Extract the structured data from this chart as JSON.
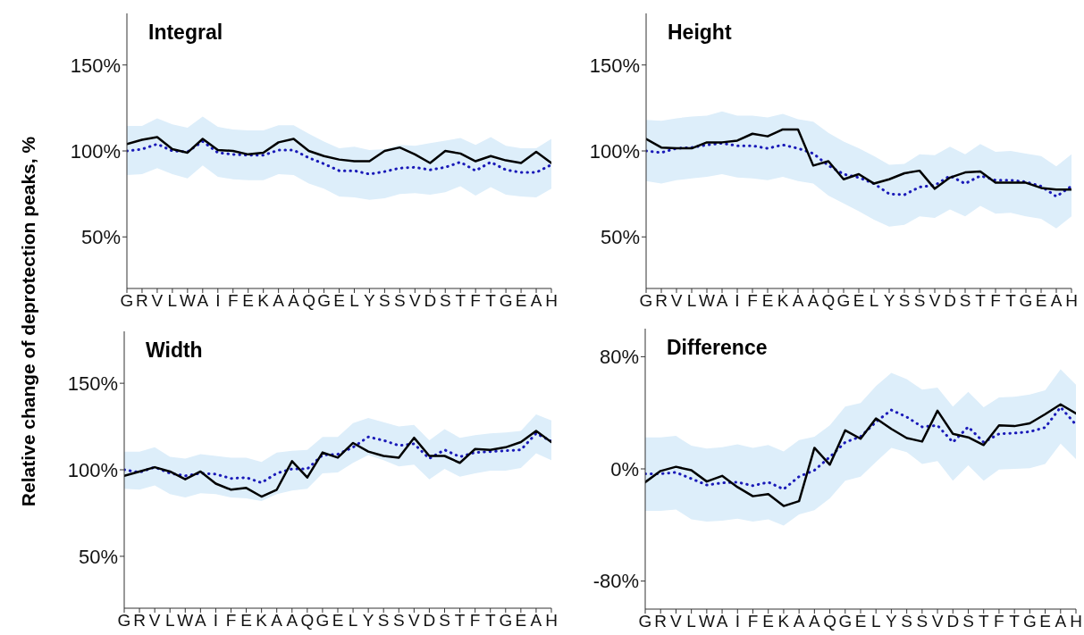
{
  "chart_data": [
    {
      "type": "line",
      "title": "Integral",
      "ylabel": "Relative change of deprotection peaks, %",
      "categories": [
        "G",
        "R",
        "V",
        "L",
        "W",
        "A",
        "I",
        "F",
        "E",
        "K",
        "A",
        "A",
        "Q",
        "G",
        "E",
        "L",
        "Y",
        "S",
        "S",
        "V",
        "D",
        "S",
        "T",
        "F",
        "T",
        "G",
        "E",
        "A",
        "H"
      ],
      "ylim": [
        20,
        180
      ],
      "yticks": [
        {
          "value": 50,
          "label": "50%"
        },
        {
          "value": 100,
          "label": "100%"
        },
        {
          "value": 150,
          "label": "150%"
        }
      ],
      "series": [
        {
          "color": "#1a1ab8",
          "line_style": "dotted",
          "values": [
            100,
            101,
            104,
            100,
            99.5,
            105.5,
            99,
            98,
            97.5,
            97.5,
            100.5,
            100.5,
            96,
            92.5,
            88.5,
            88.5,
            86.5,
            88,
            90,
            90.5,
            89,
            90.5,
            93.5,
            88.5,
            93.5,
            89,
            87.5,
            87.5,
            92
          ],
          "lower": [
            86,
            86.5,
            90,
            86.5,
            84,
            91.5,
            85,
            83.5,
            83,
            83,
            86.5,
            86,
            81,
            78,
            73.5,
            73,
            71.5,
            72.5,
            75,
            75.5,
            74.5,
            76,
            79.5,
            74,
            79,
            74.5,
            73.5,
            73,
            78
          ],
          "upper": [
            114.5,
            114.5,
            119,
            115.5,
            113.5,
            120,
            114,
            112.5,
            112,
            112,
            115,
            115,
            110,
            105.5,
            101.5,
            102.5,
            100.5,
            101,
            103.5,
            103,
            104.5,
            106,
            107.5,
            103.5,
            108,
            103,
            101.5,
            101.5,
            107
          ]
        },
        {
          "color": "#000000",
          "line_style": "solid",
          "values": [
            104,
            106.5,
            108,
            101,
            99,
            107,
            100.5,
            100,
            98,
            99,
            105,
            107,
            100,
            97,
            95,
            94,
            94,
            100,
            102,
            98,
            93,
            100,
            98.5,
            94,
            97,
            94.5,
            93,
            99.5,
            93
          ]
        }
      ]
    },
    {
      "type": "line",
      "title": "Height",
      "categories": [
        "G",
        "R",
        "V",
        "L",
        "W",
        "A",
        "I",
        "F",
        "E",
        "K",
        "A",
        "A",
        "Q",
        "G",
        "E",
        "L",
        "Y",
        "S",
        "S",
        "V",
        "D",
        "S",
        "T",
        "F",
        "T",
        "G",
        "E",
        "A",
        "H"
      ],
      "ylim": [
        20,
        180
      ],
      "yticks": [
        {
          "value": 50,
          "label": "50%"
        },
        {
          "value": 100,
          "label": "100%"
        },
        {
          "value": 150,
          "label": "150%"
        }
      ],
      "series": [
        {
          "color": "#1a1ab8",
          "line_style": "dotted",
          "values": [
            100,
            99,
            101.5,
            102,
            103.5,
            104.5,
            103,
            103,
            101.5,
            103.5,
            101.5,
            98.5,
            91.5,
            86.5,
            84.5,
            81,
            75,
            74.5,
            79,
            80,
            85.5,
            81,
            85.5,
            83,
            83,
            82,
            79.5,
            73.5,
            79.5
          ],
          "lower": [
            82.5,
            81,
            83,
            84,
            85,
            86.5,
            84.5,
            84,
            83,
            85,
            82.5,
            81,
            74,
            69.5,
            65,
            60,
            56,
            57,
            62,
            61,
            66,
            62,
            68,
            63.5,
            64,
            62,
            60.5,
            55,
            62
          ],
          "upper": [
            118,
            117.5,
            119,
            120,
            120.5,
            123,
            120.5,
            120.5,
            119.5,
            121.5,
            118.5,
            117,
            110.5,
            105.5,
            101.5,
            97,
            92,
            92.5,
            98,
            97.5,
            102.5,
            98,
            104,
            99.5,
            100,
            98.5,
            97,
            91,
            98
          ]
        },
        {
          "color": "#000000",
          "line_style": "solid",
          "values": [
            107,
            102,
            101.5,
            101.5,
            105,
            105,
            106,
            110,
            108.5,
            112.5,
            112.5,
            91.5,
            94,
            83.5,
            86.5,
            81,
            83.5,
            87,
            88.5,
            78,
            84.5,
            87.5,
            88,
            81.5,
            81.5,
            81.5,
            78.5,
            77.5,
            77.5
          ]
        }
      ]
    },
    {
      "type": "line",
      "title": "Width",
      "categories": [
        "G",
        "R",
        "V",
        "L",
        "W",
        "A",
        "I",
        "F",
        "E",
        "K",
        "A",
        "A",
        "Q",
        "G",
        "E",
        "L",
        "Y",
        "S",
        "S",
        "V",
        "D",
        "S",
        "T",
        "F",
        "T",
        "G",
        "E",
        "A",
        "H"
      ],
      "ylim": [
        20,
        180
      ],
      "yticks": [
        {
          "value": 50,
          "label": "50%"
        },
        {
          "value": 100,
          "label": "100%"
        },
        {
          "value": 150,
          "label": "150%"
        }
      ],
      "series": [
        {
          "color": "#1a1ab8",
          "line_style": "dotted",
          "values": [
            100,
            98.5,
            101.5,
            98,
            96.5,
            98,
            97.5,
            95,
            95.5,
            92.5,
            98,
            100.5,
            100.5,
            108.5,
            109,
            113,
            119,
            117,
            114,
            115,
            106.5,
            111.5,
            107.5,
            110,
            110.5,
            111,
            111.5,
            121,
            116.5
          ],
          "lower": [
            89,
            88.5,
            91,
            86,
            84,
            86.5,
            86,
            84,
            83.5,
            82,
            86,
            88,
            89,
            98,
            98.5,
            104,
            108.5,
            105.5,
            102,
            103,
            94.5,
            100.5,
            96,
            98,
            99.5,
            99.5,
            101,
            109.5,
            105.5
          ],
          "upper": [
            110.5,
            110.5,
            113,
            107.5,
            106.5,
            109,
            108,
            107,
            107,
            104.5,
            110,
            111,
            111.5,
            119,
            119,
            127,
            130,
            127.5,
            125,
            126,
            117,
            123.5,
            118.5,
            120,
            121,
            121.5,
            122.5,
            132,
            128.5
          ]
        },
        {
          "color": "#000000",
          "line_style": "solid",
          "values": [
            96.5,
            99,
            101.5,
            99,
            94.5,
            99,
            92,
            88.5,
            89.5,
            84.5,
            88.5,
            105,
            95.5,
            110,
            107,
            115.5,
            110.5,
            108,
            107,
            118.5,
            108,
            108,
            104,
            112,
            111.5,
            113,
            116,
            122.5,
            116
          ]
        }
      ]
    },
    {
      "type": "line",
      "title": "Difference",
      "categories": [
        "G",
        "R",
        "V",
        "L",
        "W",
        "A",
        "I",
        "F",
        "E",
        "K",
        "A",
        "A",
        "Q",
        "G",
        "E",
        "L",
        "Y",
        "S",
        "S",
        "V",
        "D",
        "S",
        "T",
        "F",
        "T",
        "G",
        "E",
        "A",
        "H"
      ],
      "ylim": [
        -100,
        100
      ],
      "yticks": [
        {
          "value": -80,
          "label": "-80%"
        },
        {
          "value": 0,
          "label": "0%"
        },
        {
          "value": 80,
          "label": "80%"
        }
      ],
      "series": [
        {
          "color": "#1a1ab8",
          "line_style": "dotted",
          "values": [
            -3.5,
            -3.5,
            -2.5,
            -7,
            -11.5,
            -10,
            -9.5,
            -12,
            -9.5,
            -14.5,
            -5.5,
            -1,
            8.5,
            19,
            23,
            33.5,
            42,
            37,
            30,
            31,
            19,
            30,
            19,
            25,
            25.5,
            26.5,
            29.5,
            44,
            31.5
          ],
          "lower": [
            -30,
            -30,
            -29,
            -36,
            -37.5,
            -37,
            -35.5,
            -37.5,
            -36,
            -40.5,
            -32.5,
            -29.5,
            -21,
            -8.5,
            -5.5,
            5,
            15,
            12,
            3.5,
            5.5,
            -8.5,
            2.5,
            -8.5,
            -0.5,
            0,
            0.5,
            3.5,
            18,
            7
          ],
          "upper": [
            22.5,
            22.5,
            23.5,
            16.5,
            14.5,
            15.5,
            17.5,
            15,
            17,
            12.5,
            20.5,
            23,
            31,
            44.5,
            47,
            59,
            68.5,
            64,
            56.5,
            58,
            44.5,
            55,
            44,
            51,
            51.5,
            53,
            56,
            71,
            60
          ]
        },
        {
          "color": "#000000",
          "line_style": "solid",
          "values": [
            -9.5,
            -1.5,
            1.5,
            -1,
            -9,
            -5,
            -13,
            -19.5,
            -18,
            -26.5,
            -23,
            15,
            3,
            27.5,
            21.5,
            36,
            28.5,
            22,
            19.5,
            41.5,
            25,
            22.5,
            17,
            31,
            30.5,
            32.5,
            39,
            46,
            39.5
          ]
        }
      ]
    }
  ]
}
